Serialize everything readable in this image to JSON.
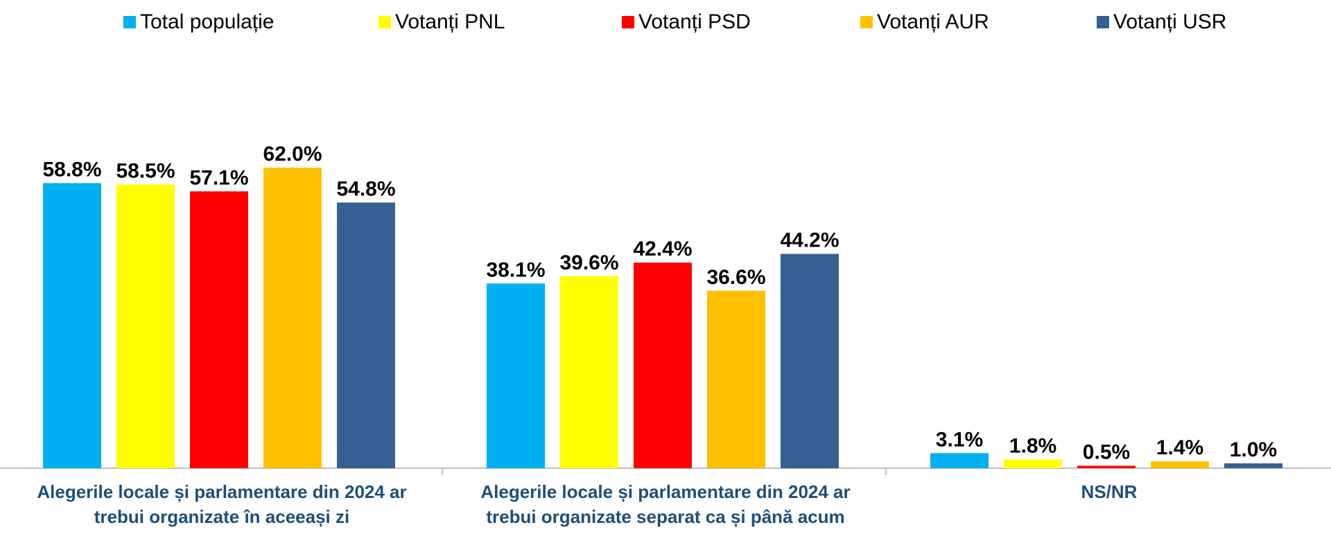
{
  "chart_data": {
    "type": "bar",
    "categories": [
      "Alegerile locale și parlamentare din 2024 ar trebui organizate în aceeași zi",
      "Alegerile locale și parlamentare din 2024 ar trebui organizate separat ca și până acum",
      "NS/NR"
    ],
    "series": [
      {
        "name": "Total populație",
        "color": "#00b0f0",
        "values": [
          58.8,
          38.1,
          3.1
        ]
      },
      {
        "name": "Votanți PNL",
        "color": "#ffff00",
        "values": [
          58.5,
          39.6,
          1.8
        ]
      },
      {
        "name": "Votanți PSD",
        "color": "#ff0000",
        "values": [
          57.1,
          42.4,
          0.5
        ]
      },
      {
        "name": "Votanți AUR",
        "color": "#ffc000",
        "values": [
          62.0,
          36.6,
          1.4
        ]
      },
      {
        "name": "Votanți USR",
        "color": "#376092",
        "values": [
          54.8,
          44.2,
          1.0
        ]
      }
    ],
    "value_labels": [
      [
        "58.8%",
        "38.1%",
        "3.1%"
      ],
      [
        "58.5%",
        "39.6%",
        "1.8%"
      ],
      [
        "57.1%",
        "42.4%",
        "0.5%"
      ],
      [
        "62.0%",
        "36.6%",
        "1.4%"
      ],
      [
        "54.8%",
        "44.2%",
        "1.0%"
      ]
    ],
    "ylim": [
      0,
      69
    ],
    "legend_position": "top",
    "grid": false
  },
  "category_labels": [
    "Alegerile locale și parlamentare din 2024 ar\ntrebui organizate în aceeași zi",
    "Alegerile locale și parlamentare din 2024 ar\ntrebui organizate separat ca și până acum",
    "NS/NR"
  ]
}
